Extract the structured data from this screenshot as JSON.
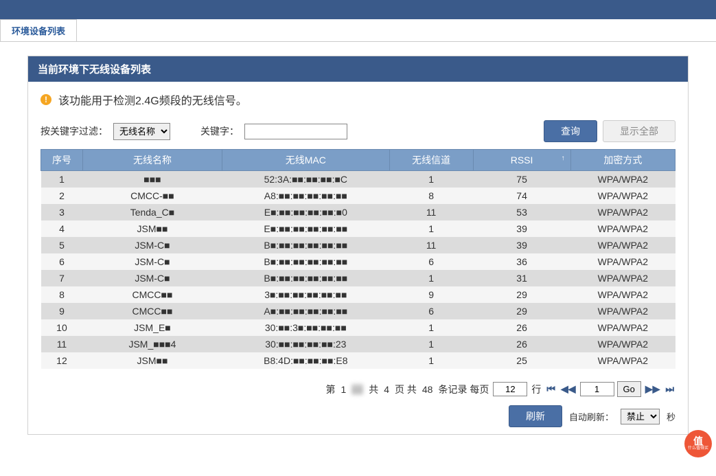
{
  "tab_label": "环境设备列表",
  "panel_title": "当前环境下无线设备列表",
  "info_text": "该功能用于检测2.4G频段的无线信号。",
  "filter": {
    "by_label": "按关键字过滤：",
    "by_selected": "无线名称",
    "keyword_label": "关键字：",
    "keyword_value": "",
    "query_btn": "查询",
    "show_all_btn": "显示全部"
  },
  "table": {
    "columns": [
      "序号",
      "无线名称",
      "无线MAC",
      "无线信道",
      "RSSI",
      "加密方式"
    ],
    "col_widths": [
      "60px",
      "200px",
      "240px",
      "120px",
      "140px",
      "150px"
    ],
    "sort_col_index": 4,
    "rows": [
      {
        "idx": 1,
        "name": "■■■",
        "mac": "52:3A:■■:■■:■■:■C",
        "chan": 1,
        "rssi": 75,
        "enc": "WPA/WPA2"
      },
      {
        "idx": 2,
        "name": "CMCC-■■",
        "mac": "A8:■■:■■:■■:■■:■■",
        "chan": 8,
        "rssi": 74,
        "enc": "WPA/WPA2"
      },
      {
        "idx": 3,
        "name": "Tenda_C■",
        "mac": "E■:■■:■■:■■:■■:■0",
        "chan": 11,
        "rssi": 53,
        "enc": "WPA/WPA2"
      },
      {
        "idx": 4,
        "name": "JSM■■",
        "mac": "E■:■■:■■:■■:■■:■■",
        "chan": 1,
        "rssi": 39,
        "enc": "WPA/WPA2"
      },
      {
        "idx": 5,
        "name": "JSM-C■",
        "mac": "B■:■■:■■:■■:■■:■■",
        "chan": 11,
        "rssi": 39,
        "enc": "WPA/WPA2"
      },
      {
        "idx": 6,
        "name": "JSM-C■",
        "mac": "B■:■■:■■:■■:■■:■■",
        "chan": 6,
        "rssi": 36,
        "enc": "WPA/WPA2"
      },
      {
        "idx": 7,
        "name": "JSM-C■",
        "mac": "B■:■■:■■:■■:■■:■■",
        "chan": 1,
        "rssi": 31,
        "enc": "WPA/WPA2"
      },
      {
        "idx": 8,
        "name": "CMCC■■",
        "mac": "3■:■■:■■:■■:■■:■■",
        "chan": 9,
        "rssi": 29,
        "enc": "WPA/WPA2"
      },
      {
        "idx": 9,
        "name": "CMCC■■",
        "mac": "A■:■■:■■:■■:■■:■■",
        "chan": 6,
        "rssi": 29,
        "enc": "WPA/WPA2"
      },
      {
        "idx": 10,
        "name": "JSM_E■",
        "mac": "30:■■:3■:■■:■■:■■",
        "chan": 1,
        "rssi": 26,
        "enc": "WPA/WPA2"
      },
      {
        "idx": 11,
        "name": "JSM_■■■4",
        "mac": "30:■■:■■:■■:■■:23",
        "chan": 1,
        "rssi": 26,
        "enc": "WPA/WPA2"
      },
      {
        "idx": 12,
        "name": "JSM■■",
        "mac": "B8:4D:■■:■■:■■:E8",
        "chan": 1,
        "rssi": 25,
        "enc": "WPA/WPA2"
      }
    ]
  },
  "pagination": {
    "prefix": "第",
    "current_page": "1",
    "blur_text": "■■",
    "mid1": "共",
    "total_pages": "4",
    "mid2": "页 共",
    "total_records": "48",
    "mid3": "条记录 每页",
    "per_page": "12",
    "mid4": "行",
    "goto_page": "1",
    "go_btn": "Go"
  },
  "refresh": {
    "refresh_btn": "刷新",
    "auto_label": "自动刷新：",
    "auto_selected": "禁止",
    "seconds_suffix": "秒"
  },
  "watermark": {
    "line1": "值",
    "line2": "什么值得买"
  }
}
